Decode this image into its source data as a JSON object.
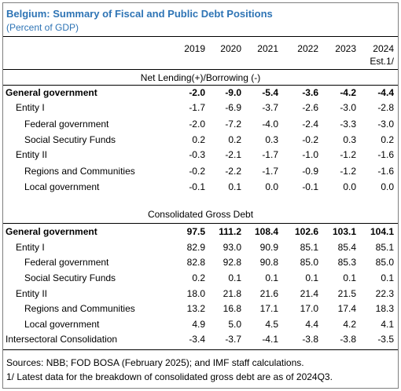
{
  "title": "Belgium: Summary of Fiscal and Public Debt Positions",
  "subtitle": "(Percent of GDP)",
  "years": [
    "2019",
    "2020",
    "2021",
    "2022",
    "2023",
    "2024"
  ],
  "year_note": "Est.1/",
  "section1_title": "Net Lending(+)/Borrowing (-)",
  "section1_rows": [
    {
      "label": "General government",
      "values": [
        "-2.0",
        "-9.0",
        "-5.4",
        "-3.6",
        "-4.2",
        "-4.4"
      ]
    },
    {
      "label": "Entity I",
      "values": [
        "-1.7",
        "-6.9",
        "-3.7",
        "-2.6",
        "-3.0",
        "-2.8"
      ]
    },
    {
      "label": "Federal government",
      "values": [
        "-2.0",
        "-7.2",
        "-4.0",
        "-2.4",
        "-3.3",
        "-3.0"
      ]
    },
    {
      "label": "Social Secutiry Funds",
      "values": [
        "0.2",
        "0.2",
        "0.3",
        "-0.2",
        "0.3",
        "0.2"
      ]
    },
    {
      "label": "Entity II",
      "values": [
        "-0.3",
        "-2.1",
        "-1.7",
        "-1.0",
        "-1.2",
        "-1.6"
      ]
    },
    {
      "label": "Regions and Communities",
      "values": [
        "-0.2",
        "-2.2",
        "-1.7",
        "-0.9",
        "-1.2",
        "-1.6"
      ]
    },
    {
      "label": "Local government",
      "values": [
        "-0.1",
        "0.1",
        "0.0",
        "-0.1",
        "0.0",
        "0.0"
      ]
    }
  ],
  "section2_title": "Consolidated Gross Debt",
  "section2_rows": [
    {
      "label": "General government",
      "values": [
        "97.5",
        "111.2",
        "108.4",
        "102.6",
        "103.1",
        "104.1"
      ]
    },
    {
      "label": "Entity I",
      "values": [
        "82.9",
        "93.0",
        "90.9",
        "85.1",
        "85.4",
        "85.1"
      ]
    },
    {
      "label": "Federal government",
      "values": [
        "82.8",
        "92.8",
        "90.8",
        "85.0",
        "85.3",
        "85.0"
      ]
    },
    {
      "label": "Social Secutiry Funds",
      "values": [
        "0.2",
        "0.1",
        "0.1",
        "0.1",
        "0.1",
        "0.1"
      ]
    },
    {
      "label": "Entity II",
      "values": [
        "18.0",
        "21.8",
        "21.6",
        "21.4",
        "21.5",
        "22.3"
      ]
    },
    {
      "label": "Regions and Communities",
      "values": [
        "13.2",
        "16.8",
        "17.1",
        "17.0",
        "17.4",
        "18.3"
      ]
    },
    {
      "label": "Local government",
      "values": [
        "4.9",
        "5.0",
        "4.5",
        "4.4",
        "4.2",
        "4.1"
      ]
    },
    {
      "label": "Intersectoral Consolidation",
      "values": [
        "-3.4",
        "-3.7",
        "-4.1",
        "-3.8",
        "-3.8",
        "-3.5"
      ]
    }
  ],
  "footnotes": [
    "Sources: NBB; FOD BOSA (February 2025); and IMF staff calculations.",
    "1/ Latest data for the breakdown of consolidated gross debt are as of 2024Q3."
  ]
}
